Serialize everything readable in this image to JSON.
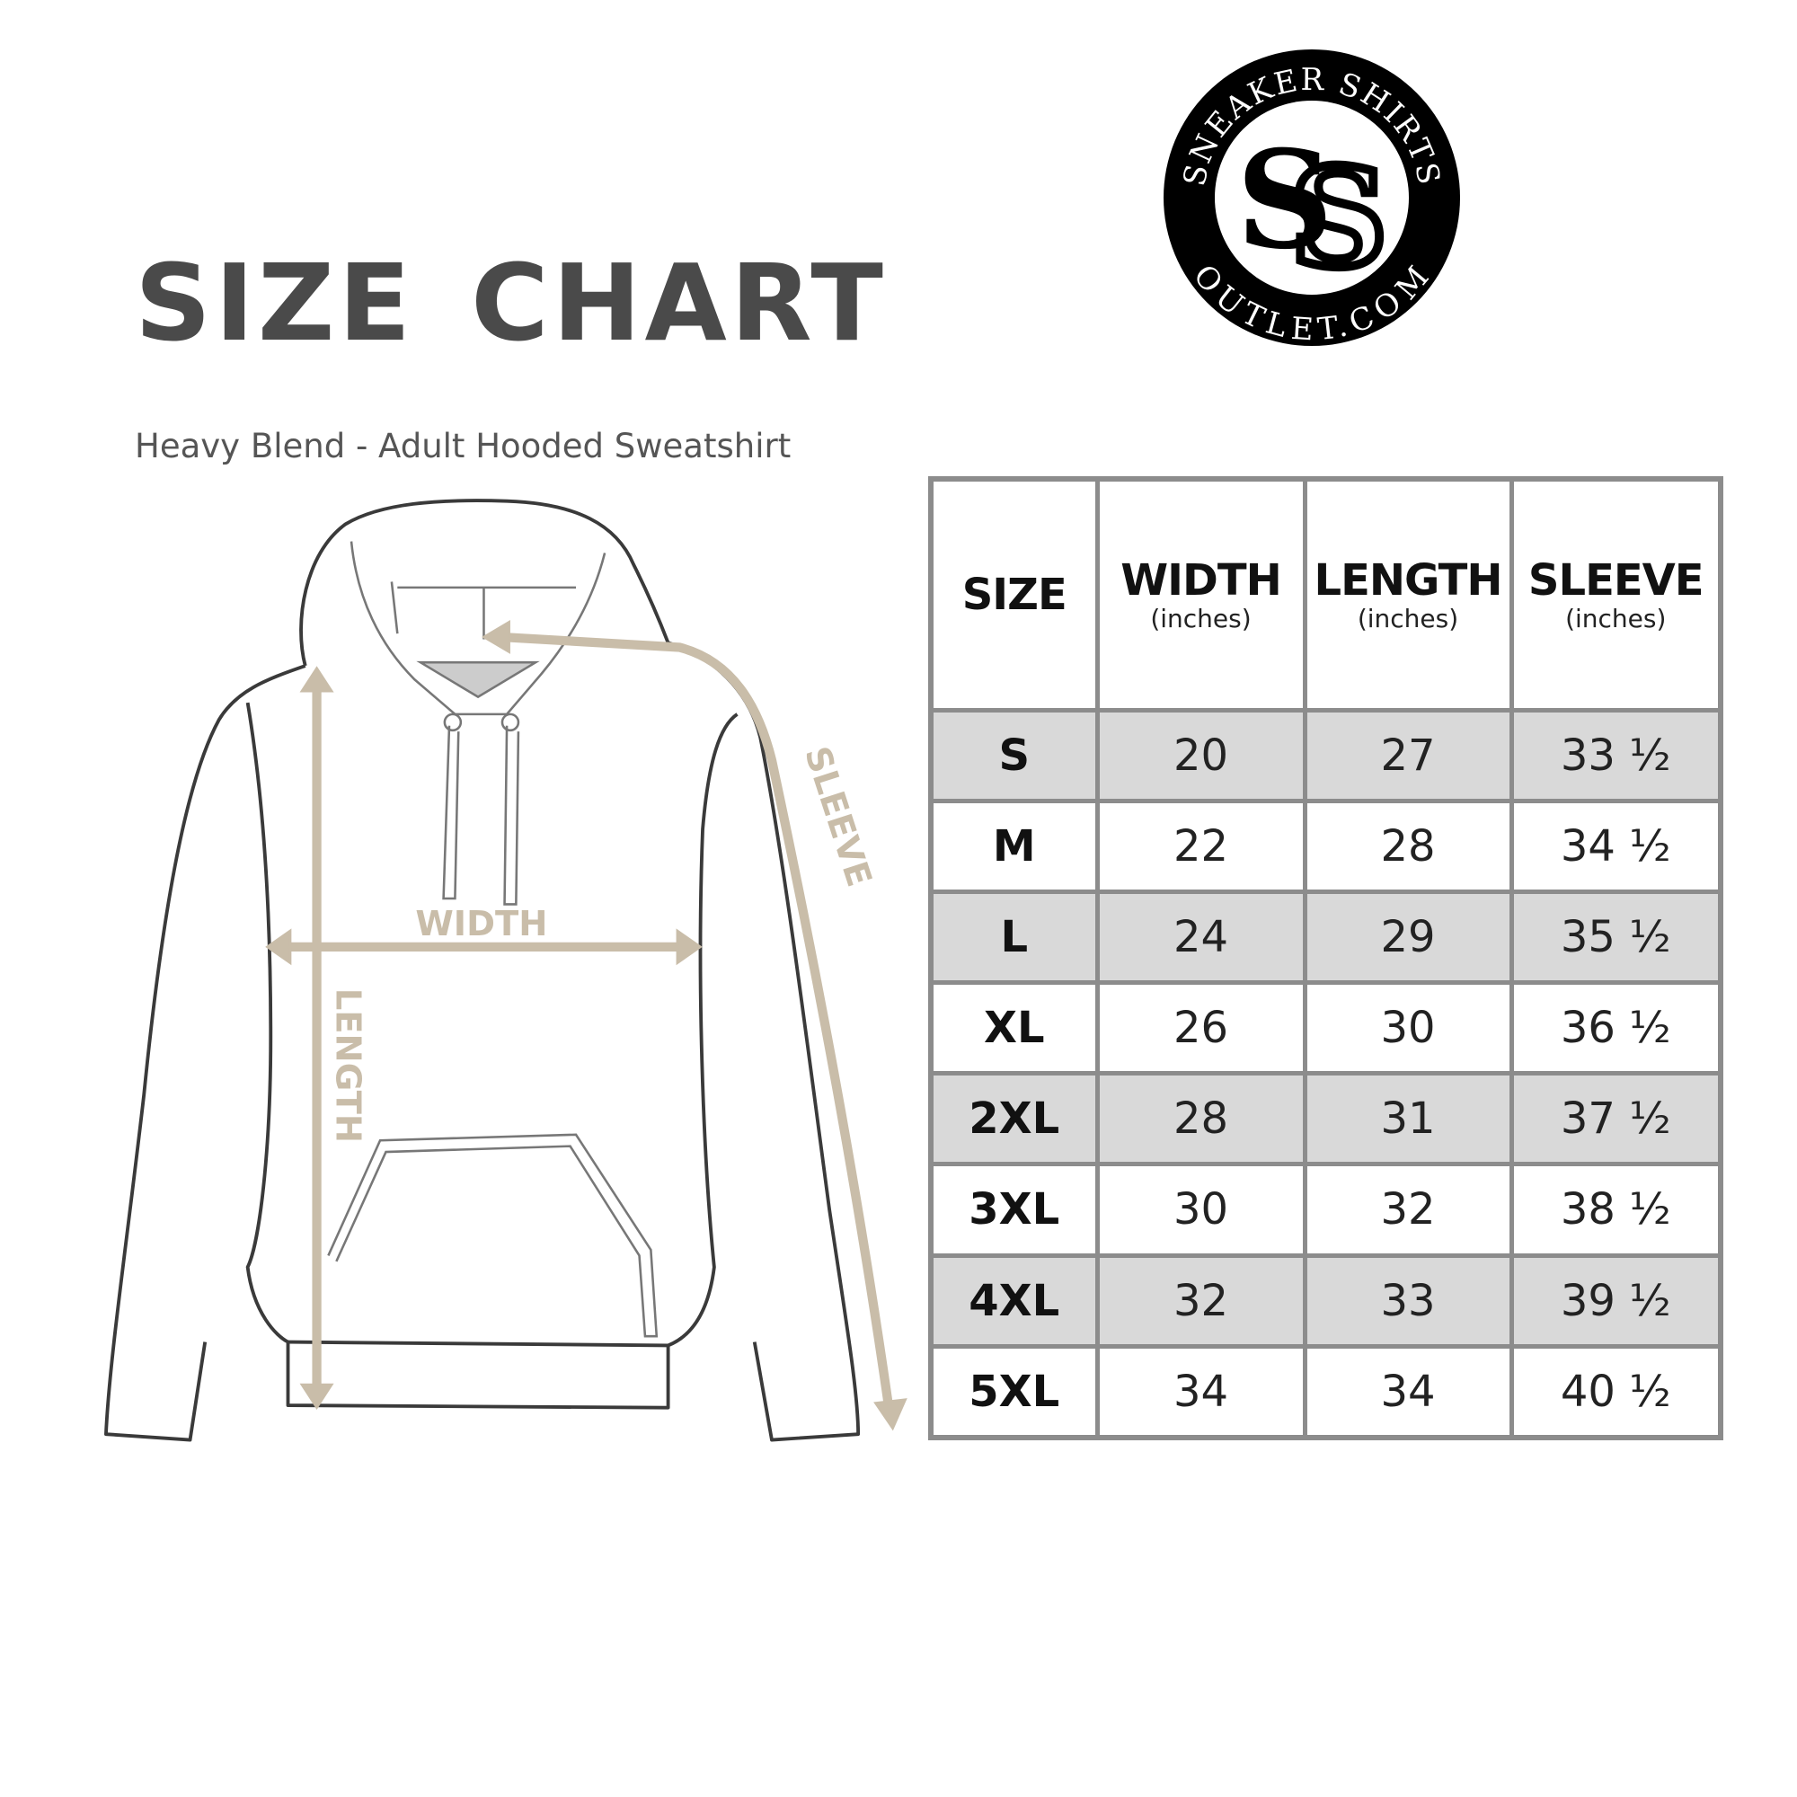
{
  "title": "SIZE CHART",
  "subtitle": "Heavy Blend - Adult Hooded Sweatshirt",
  "logo": {
    "top_text": "SNEAKER SHIRTS",
    "bottom_text": "OUTLET.COM",
    "monogram": "SS"
  },
  "diagram": {
    "width_label": "WIDTH",
    "length_label": "LENGTH",
    "sleeve_label": "SLEEVE",
    "arrow_color": "#c9bda9"
  },
  "table": {
    "headers": [
      {
        "label": "SIZE",
        "unit": ""
      },
      {
        "label": "WIDTH",
        "unit": "(inches)"
      },
      {
        "label": "LENGTH",
        "unit": "(inches)"
      },
      {
        "label": "SLEEVE",
        "unit": "(inches)"
      }
    ],
    "rows": [
      [
        "S",
        "20",
        "27",
        "33 ½"
      ],
      [
        "M",
        "22",
        "28",
        "34 ½"
      ],
      [
        "L",
        "24",
        "29",
        "35 ½"
      ],
      [
        "XL",
        "26",
        "30",
        "36 ½"
      ],
      [
        "2XL",
        "28",
        "31",
        "37 ½"
      ],
      [
        "3XL",
        "30",
        "32",
        "38 ½"
      ],
      [
        "4XL",
        "32",
        "33",
        "39 ½"
      ],
      [
        "5XL",
        "34",
        "34",
        "40 ½"
      ]
    ],
    "alt_row_color": "#d9d9d9",
    "border_color": "#8c8c8c"
  }
}
